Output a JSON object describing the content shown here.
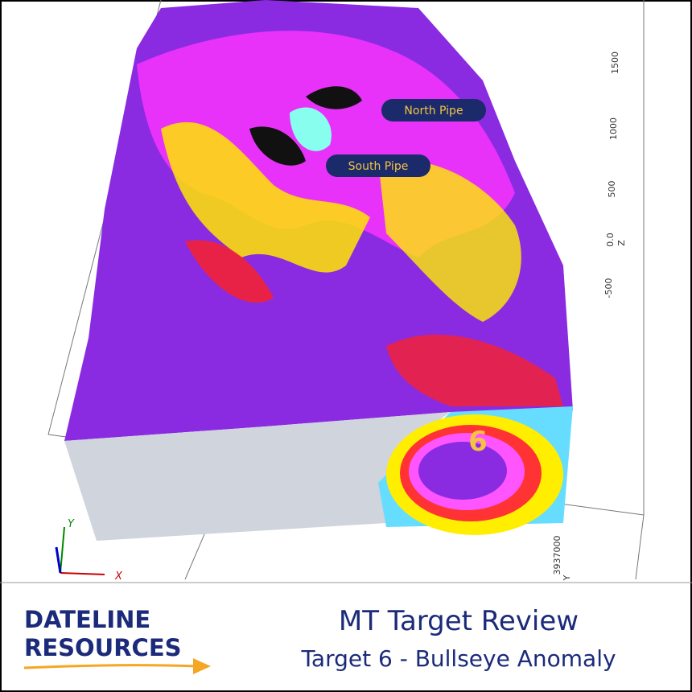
{
  "scene": {
    "pipes": [
      "North Pipe",
      "South Pipe"
    ],
    "target": "6",
    "axis": {
      "z_ticks": [
        "1500",
        "1000",
        "500",
        "0.0",
        "-500"
      ],
      "z_label": "Z",
      "y_tick": "3937000",
      "y_label": "Y"
    },
    "triad": {
      "x": "X",
      "y": "Y"
    }
  },
  "footer": {
    "logo": [
      "DATELINE",
      "RESOURCES"
    ],
    "title": "MT Target Review",
    "subtitle": "Target 6 - Bullseye Anomaly"
  }
}
